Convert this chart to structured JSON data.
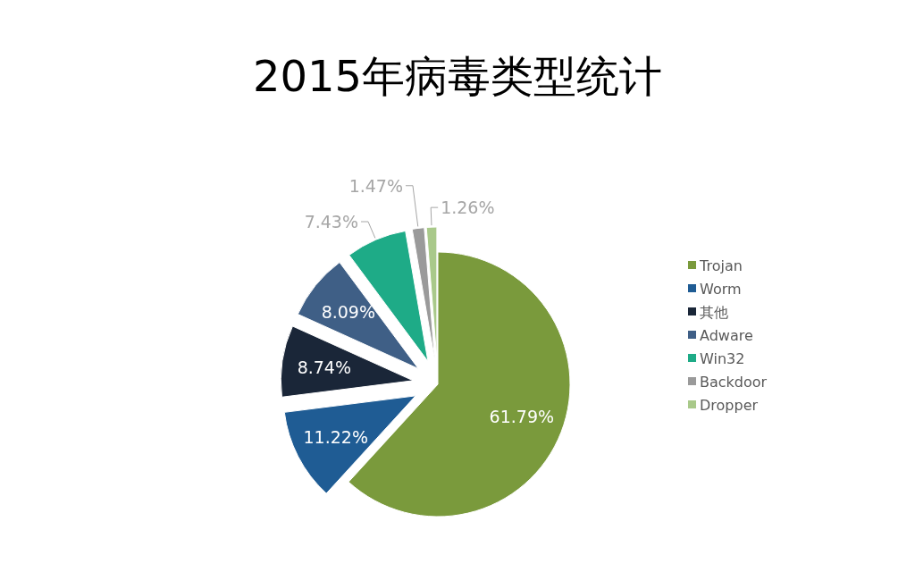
{
  "chart_data": {
    "type": "pie",
    "title": "2015年病毒类型统计",
    "categories": [
      "Trojan",
      "Worm",
      "其他",
      "Adware",
      "Win32",
      "Backdoor",
      "Dropper"
    ],
    "values": [
      61.79,
      11.22,
      8.74,
      8.09,
      7.43,
      1.47,
      1.26
    ],
    "value_labels": [
      "61.79%",
      "11.22%",
      "8.74%",
      "8.09%",
      "7.43%",
      "1.47%",
      "1.26%"
    ],
    "colors": [
      "#7a9a3c",
      "#1f5c94",
      "#1a2638",
      "#3f5f86",
      "#1eab87",
      "#9a9a9a",
      "#a9c98a"
    ],
    "legend": "right"
  }
}
